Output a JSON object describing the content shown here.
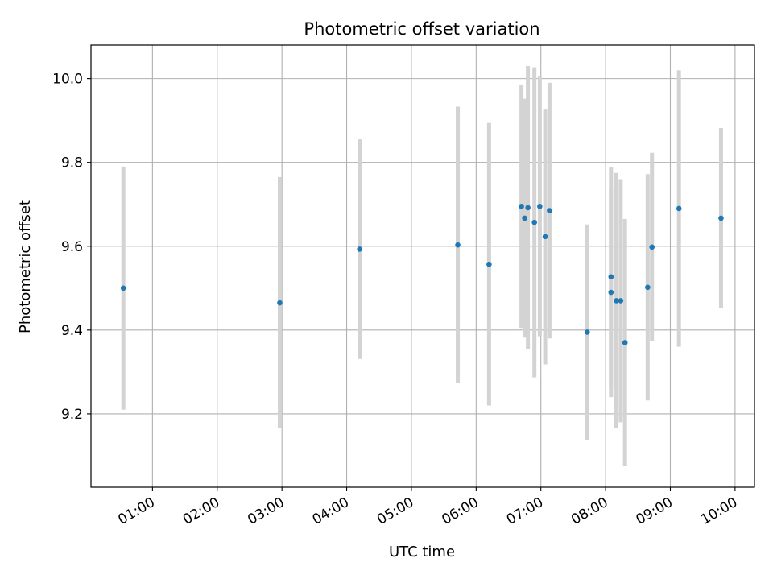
{
  "chart_data": {
    "type": "scatter",
    "title": "Photometric offset variation",
    "xlabel": "UTC time",
    "ylabel": "Photometric offset",
    "grid": true,
    "xlim": [
      "00:03",
      "10:18"
    ],
    "ylim": [
      9.025,
      10.08
    ],
    "xticks": [
      "01:00",
      "02:00",
      "03:00",
      "04:00",
      "05:00",
      "06:00",
      "07:00",
      "08:00",
      "09:00",
      "10:00"
    ],
    "yticks": [
      9.2,
      9.4,
      9.6,
      9.8,
      10.0
    ],
    "marker_color": "#1f77b4",
    "errorbar_color": "#d3d3d3",
    "series": [
      {
        "points": [
          {
            "x": "00:33",
            "y": 9.5,
            "err": 0.29
          },
          {
            "x": "02:58",
            "y": 9.465,
            "err": 0.3
          },
          {
            "x": "04:12",
            "y": 9.593,
            "err": 0.262
          },
          {
            "x": "05:43",
            "y": 9.603,
            "err": 0.33
          },
          {
            "x": "06:12",
            "y": 9.557,
            "err": 0.337
          },
          {
            "x": "06:42",
            "y": 9.695,
            "err": 0.29
          },
          {
            "x": "06:45",
            "y": 9.667,
            "err": 0.285
          },
          {
            "x": "06:48",
            "y": 9.692,
            "err": 0.338
          },
          {
            "x": "06:54",
            "y": 9.657,
            "err": 0.37
          },
          {
            "x": "06:59",
            "y": 9.695,
            "err": 0.31
          },
          {
            "x": "07:04",
            "y": 9.623,
            "err": 0.305
          },
          {
            "x": "07:08",
            "y": 9.685,
            "err": 0.305
          },
          {
            "x": "07:43",
            "y": 9.395,
            "err": 0.257
          },
          {
            "x": "08:05",
            "y": 9.527,
            "err": 0.262
          },
          {
            "x": "08:05",
            "y": 9.49,
            "err": 0.25
          },
          {
            "x": "08:10",
            "y": 9.47,
            "err": 0.305
          },
          {
            "x": "08:14",
            "y": 9.47,
            "err": 0.29
          },
          {
            "x": "08:18",
            "y": 9.37,
            "err": 0.295
          },
          {
            "x": "08:39",
            "y": 9.502,
            "err": 0.27
          },
          {
            "x": "08:43",
            "y": 9.598,
            "err": 0.225
          },
          {
            "x": "09:08",
            "y": 9.69,
            "err": 0.33
          },
          {
            "x": "09:47",
            "y": 9.667,
            "err": 0.215
          }
        ]
      }
    ]
  }
}
